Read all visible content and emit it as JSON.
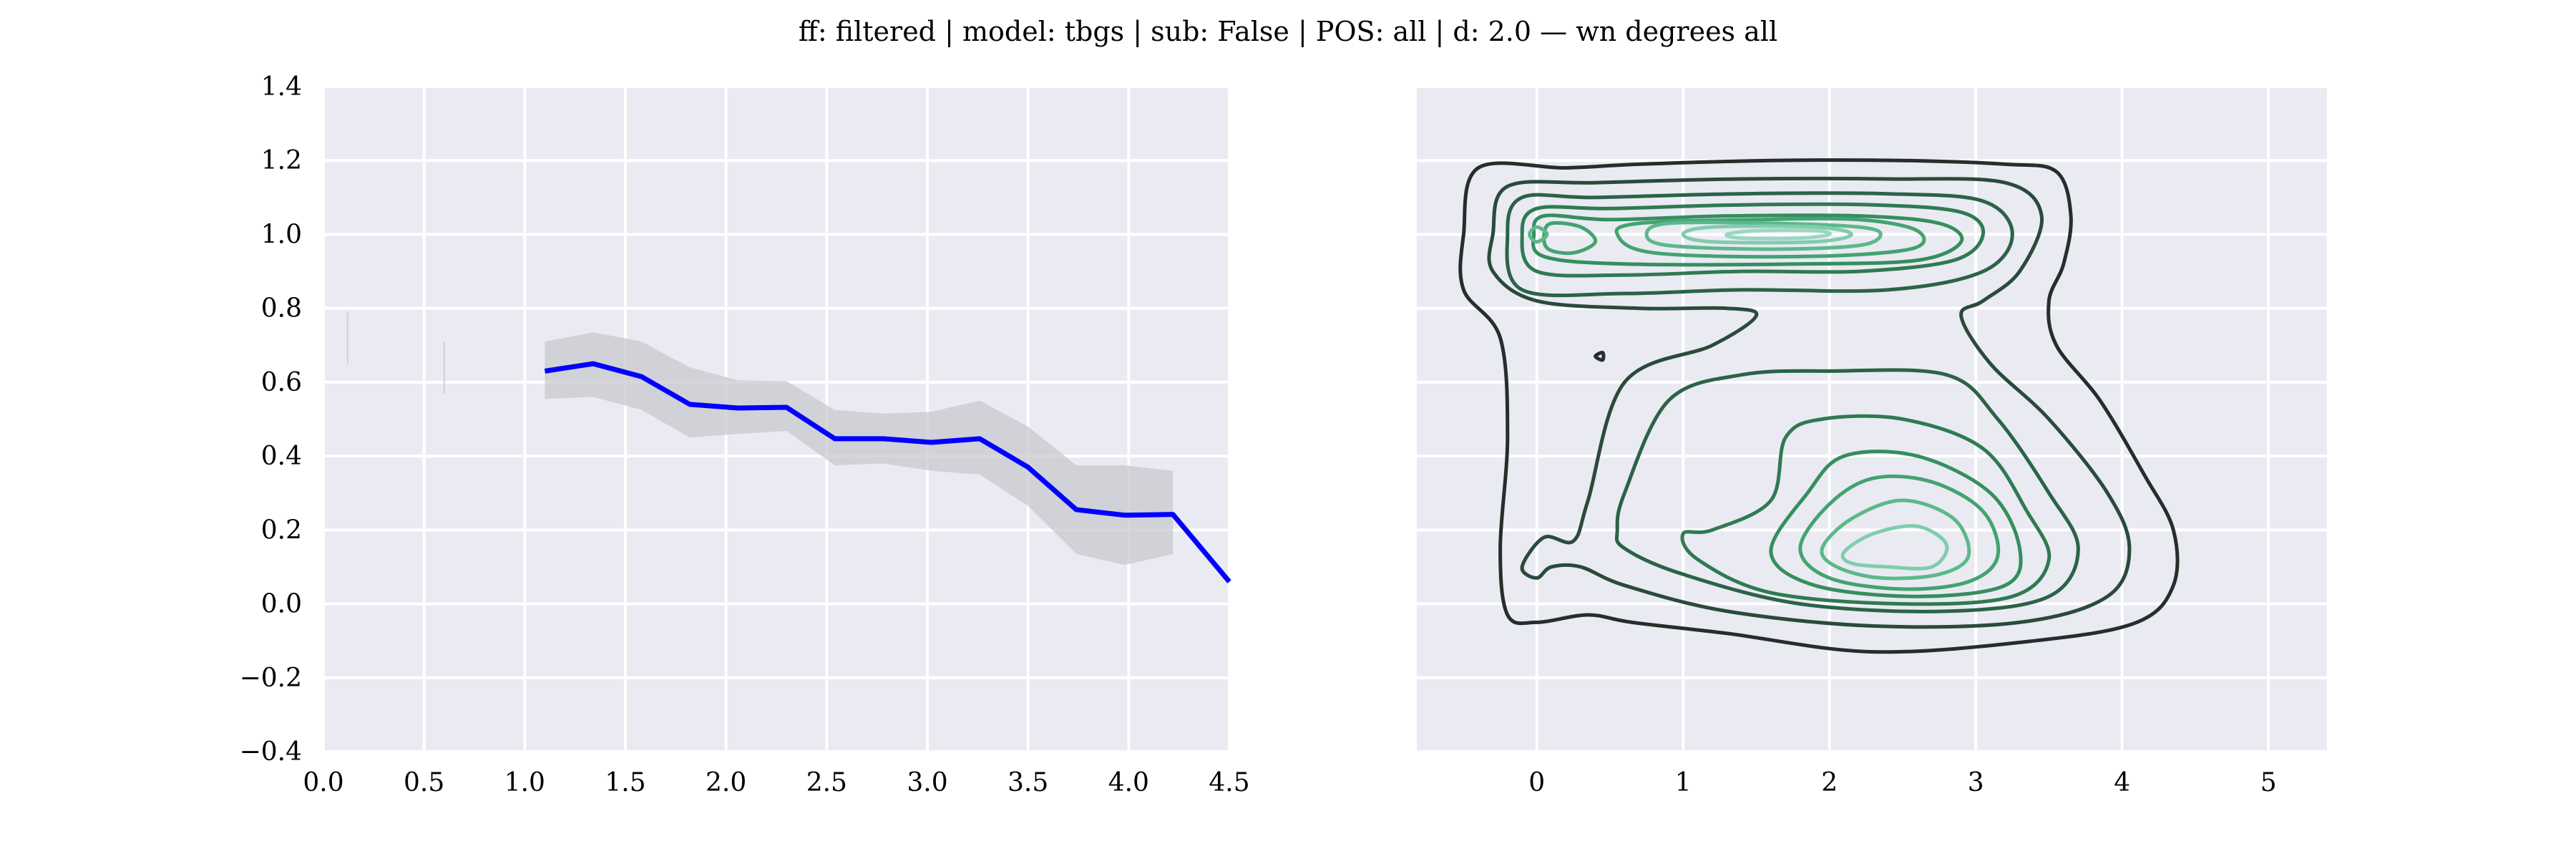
{
  "figure": {
    "title": "ff: filtered | model: tbgs | sub: False | POS: all | d: 2.0 — wn degrees all",
    "background": "#eaeaf2",
    "grid_color": "#ffffff"
  },
  "chart_data": [
    {
      "type": "line",
      "xlim": [
        0.0,
        4.5
      ],
      "ylim": [
        -0.4,
        1.4
      ],
      "x_ticks": [
        "0.0",
        "0.5",
        "1.0",
        "1.5",
        "2.0",
        "2.5",
        "3.0",
        "3.5",
        "4.0",
        "4.5"
      ],
      "y_ticks": [
        "−0.4",
        "−0.2",
        "0.0",
        "0.2",
        "0.4",
        "0.6",
        "0.8",
        "1.0",
        "1.2",
        "1.4"
      ],
      "grid": true,
      "series": [
        {
          "color": "#0000ff",
          "x": [
            1.1,
            1.34,
            1.58,
            1.82,
            2.06,
            2.3,
            2.54,
            2.78,
            3.02,
            3.26,
            3.5,
            3.74,
            3.98,
            4.22,
            4.5
          ],
          "y": [
            0.63,
            0.65,
            0.615,
            0.54,
            0.53,
            0.532,
            0.447,
            0.447,
            0.437,
            0.447,
            0.37,
            0.255,
            0.24,
            0.242,
            0.06
          ],
          "ci_low": [
            0.555,
            0.56,
            0.525,
            0.45,
            0.46,
            0.468,
            0.375,
            0.38,
            0.36,
            0.35,
            0.265,
            0.135,
            0.105,
            0.135
          ],
          "ci_high": [
            0.71,
            0.735,
            0.71,
            0.64,
            0.605,
            0.603,
            0.525,
            0.515,
            0.52,
            0.55,
            0.48,
            0.375,
            0.375,
            0.36
          ],
          "ci_color": "#c8c8cf"
        }
      ],
      "traces": [
        {
          "x": 0.12,
          "y": [
            0.65,
            0.79
          ]
        },
        {
          "x": 0.6,
          "y": [
            0.57,
            0.71
          ]
        }
      ]
    },
    {
      "type": "kde_contour",
      "xlim": [
        -0.82,
        5.4
      ],
      "ylim": [
        -0.4,
        1.4
      ],
      "x_ticks": [
        "0",
        "1",
        "2",
        "3",
        "4",
        "5"
      ],
      "grid": true,
      "levels": [
        {
          "color": "#252e2b",
          "paths": [
            [
              [
                -0.5,
                1.0
              ],
              [
                -0.4,
                1.18
              ],
              [
                0.2,
                1.18
              ],
              [
                0.7,
                1.19
              ],
              [
                1.6,
                1.2
              ],
              [
                2.5,
                1.2
              ],
              [
                3.2,
                1.19
              ],
              [
                3.55,
                1.17
              ],
              [
                3.65,
                1.05
              ],
              [
                3.6,
                0.92
              ],
              [
                3.5,
                0.82
              ],
              [
                3.55,
                0.7
              ],
              [
                3.85,
                0.55
              ],
              [
                4.15,
                0.35
              ],
              [
                4.35,
                0.2
              ],
              [
                4.35,
                0.05
              ],
              [
                4.1,
                -0.05
              ],
              [
                3.4,
                -0.1
              ],
              [
                2.3,
                -0.13
              ],
              [
                1.3,
                -0.08
              ],
              [
                0.65,
                -0.05
              ],
              [
                0.35,
                -0.03
              ],
              [
                0.0,
                -0.05
              ],
              [
                -0.2,
                -0.03
              ],
              [
                -0.25,
                0.15
              ],
              [
                -0.2,
                0.45
              ],
              [
                -0.25,
                0.72
              ],
              [
                -0.5,
                0.85
              ],
              [
                -0.5,
                1.0
              ]
            ],
            [
              [
                0.4,
                0.67
              ],
              [
                0.45,
                0.68
              ],
              [
                0.45,
                0.66
              ],
              [
                0.4,
                0.67
              ]
            ]
          ]
        },
        {
          "color": "#2a4a3c",
          "paths": [
            [
              [
                -0.3,
                1.0
              ],
              [
                -0.2,
                1.13
              ],
              [
                0.4,
                1.14
              ],
              [
                1.4,
                1.15
              ],
              [
                2.4,
                1.15
              ],
              [
                3.2,
                1.14
              ],
              [
                3.45,
                1.05
              ],
              [
                3.3,
                0.9
              ],
              [
                3.05,
                0.82
              ],
              [
                2.9,
                0.78
              ],
              [
                3.1,
                0.65
              ],
              [
                3.5,
                0.5
              ],
              [
                3.9,
                0.3
              ],
              [
                4.05,
                0.15
              ],
              [
                3.9,
                0.02
              ],
              [
                3.3,
                -0.05
              ],
              [
                2.3,
                -0.06
              ],
              [
                1.3,
                -0.02
              ],
              [
                0.6,
                0.05
              ],
              [
                0.3,
                0.1
              ],
              [
                0.1,
                0.1
              ],
              [
                0.0,
                0.07
              ],
              [
                -0.1,
                0.1
              ],
              [
                0.05,
                0.18
              ],
              [
                0.25,
                0.17
              ],
              [
                0.35,
                0.28
              ],
              [
                0.6,
                0.6
              ],
              [
                1.2,
                0.7
              ],
              [
                1.5,
                0.78
              ],
              [
                1.3,
                0.8
              ],
              [
                0.7,
                0.8
              ],
              [
                0.0,
                0.82
              ],
              [
                -0.3,
                0.9
              ],
              [
                -0.3,
                1.0
              ]
            ]
          ]
        },
        {
          "color": "#2b6347",
          "paths": [
            [
              [
                -0.2,
                1.0
              ],
              [
                -0.1,
                1.1
              ],
              [
                0.4,
                1.1
              ],
              [
                1.4,
                1.11
              ],
              [
                2.4,
                1.11
              ],
              [
                3.05,
                1.09
              ],
              [
                3.25,
                1.0
              ],
              [
                3.05,
                0.9
              ],
              [
                2.4,
                0.85
              ],
              [
                1.4,
                0.85
              ],
              [
                0.6,
                0.84
              ],
              [
                -0.1,
                0.85
              ],
              [
                -0.2,
                1.0
              ]
            ],
            [
              [
                0.55,
                0.2
              ],
              [
                0.6,
                0.3
              ],
              [
                0.9,
                0.55
              ],
              [
                1.4,
                0.62
              ],
              [
                2.0,
                0.63
              ],
              [
                2.8,
                0.62
              ],
              [
                3.15,
                0.5
              ],
              [
                3.5,
                0.3
              ],
              [
                3.7,
                0.15
              ],
              [
                3.5,
                0.02
              ],
              [
                2.8,
                -0.02
              ],
              [
                1.8,
                0.0
              ],
              [
                1.0,
                0.08
              ],
              [
                0.6,
                0.15
              ],
              [
                0.55,
                0.2
              ]
            ]
          ]
        },
        {
          "color": "#2f7a52",
          "paths": [
            [
              [
                -0.1,
                1.0
              ],
              [
                0.0,
                1.07
              ],
              [
                0.5,
                1.07
              ],
              [
                1.4,
                1.08
              ],
              [
                2.3,
                1.08
              ],
              [
                2.9,
                1.06
              ],
              [
                3.05,
                1.0
              ],
              [
                2.85,
                0.93
              ],
              [
                2.2,
                0.9
              ],
              [
                1.4,
                0.9
              ],
              [
                0.6,
                0.89
              ],
              [
                0.0,
                0.9
              ],
              [
                -0.1,
                1.0
              ]
            ],
            [
              [
                1.0,
                0.19
              ],
              [
                1.2,
                0.2
              ],
              [
                1.6,
                0.28
              ],
              [
                1.7,
                0.45
              ],
              [
                1.95,
                0.5
              ],
              [
                2.5,
                0.5
              ],
              [
                3.05,
                0.42
              ],
              [
                3.35,
                0.25
              ],
              [
                3.5,
                0.12
              ],
              [
                3.25,
                0.02
              ],
              [
                2.5,
                0.0
              ],
              [
                1.6,
                0.03
              ],
              [
                1.1,
                0.12
              ],
              [
                1.0,
                0.19
              ]
            ]
          ]
        },
        {
          "color": "#348f5e",
          "paths": [
            [
              [
                -0.02,
                1.0
              ],
              [
                0.05,
                1.05
              ],
              [
                0.5,
                1.04
              ],
              [
                1.3,
                1.05
              ],
              [
                2.2,
                1.05
              ],
              [
                2.75,
                1.03
              ],
              [
                2.9,
                0.98
              ],
              [
                2.6,
                0.93
              ],
              [
                1.8,
                0.92
              ],
              [
                0.6,
                0.92
              ],
              [
                0.05,
                0.94
              ],
              [
                -0.02,
                1.0
              ]
            ],
            [
              [
                1.6,
                0.14
              ],
              [
                1.85,
                0.3
              ],
              [
                2.1,
                0.4
              ],
              [
                2.6,
                0.4
              ],
              [
                3.1,
                0.3
              ],
              [
                3.3,
                0.15
              ],
              [
                3.2,
                0.05
              ],
              [
                2.6,
                0.02
              ],
              [
                1.9,
                0.05
              ],
              [
                1.6,
                0.14
              ]
            ]
          ]
        },
        {
          "color": "#43a371",
          "paths": [
            [
              [
                0.05,
                1.0
              ],
              [
                0.1,
                1.03
              ],
              [
                0.3,
                1.02
              ],
              [
                0.4,
                0.98
              ],
              [
                0.25,
                0.95
              ],
              [
                0.08,
                0.96
              ],
              [
                0.05,
                1.0
              ]
            ],
            [
              [
                0.55,
                1.0
              ],
              [
                0.7,
                1.03
              ],
              [
                1.5,
                1.04
              ],
              [
                2.2,
                1.04
              ],
              [
                2.6,
                1.01
              ],
              [
                2.55,
                0.96
              ],
              [
                1.8,
                0.94
              ],
              [
                0.8,
                0.95
              ],
              [
                0.55,
                1.0
              ]
            ],
            [
              [
                1.8,
                0.15
              ],
              [
                2.0,
                0.27
              ],
              [
                2.3,
                0.34
              ],
              [
                2.7,
                0.33
              ],
              [
                3.05,
                0.25
              ],
              [
                3.15,
                0.13
              ],
              [
                2.95,
                0.06
              ],
              [
                2.5,
                0.04
              ],
              [
                2.0,
                0.07
              ],
              [
                1.8,
                0.15
              ]
            ]
          ]
        },
        {
          "color": "#5cb88a",
          "paths": [
            [
              [
                -0.05,
                1.0
              ],
              [
                0.0,
                1.02
              ],
              [
                0.07,
                1.0
              ],
              [
                0.0,
                0.98
              ],
              [
                -0.05,
                1.0
              ]
            ],
            [
              [
                0.75,
                1.0
              ],
              [
                0.9,
                1.03
              ],
              [
                1.6,
                1.03
              ],
              [
                2.2,
                1.02
              ],
              [
                2.35,
                1.0
              ],
              [
                2.2,
                0.97
              ],
              [
                1.6,
                0.96
              ],
              [
                0.9,
                0.97
              ],
              [
                0.75,
                1.0
              ]
            ],
            [
              [
                1.95,
                0.15
              ],
              [
                2.15,
                0.23
              ],
              [
                2.5,
                0.28
              ],
              [
                2.85,
                0.23
              ],
              [
                2.95,
                0.13
              ],
              [
                2.75,
                0.08
              ],
              [
                2.35,
                0.07
              ],
              [
                2.05,
                0.1
              ],
              [
                1.95,
                0.15
              ]
            ]
          ]
        },
        {
          "color": "#7fcdae",
          "paths": [
            [
              [
                1.0,
                1.0
              ],
              [
                1.2,
                1.02
              ],
              [
                1.9,
                1.02
              ],
              [
                2.15,
                1.0
              ],
              [
                1.9,
                0.98
              ],
              [
                1.2,
                0.98
              ],
              [
                1.0,
                1.0
              ]
            ],
            [
              [
                2.1,
                0.14
              ],
              [
                2.3,
                0.19
              ],
              [
                2.6,
                0.21
              ],
              [
                2.8,
                0.16
              ],
              [
                2.7,
                0.1
              ],
              [
                2.4,
                0.1
              ],
              [
                2.15,
                0.11
              ],
              [
                2.1,
                0.14
              ]
            ]
          ]
        },
        {
          "color": "#9ad7c0",
          "paths": [
            [
              [
                1.3,
                1.0
              ],
              [
                1.5,
                1.01
              ],
              [
                1.9,
                1.01
              ],
              [
                2.0,
                1.0
              ],
              [
                1.8,
                0.99
              ],
              [
                1.4,
                0.99
              ],
              [
                1.3,
                1.0
              ]
            ]
          ]
        }
      ]
    }
  ]
}
